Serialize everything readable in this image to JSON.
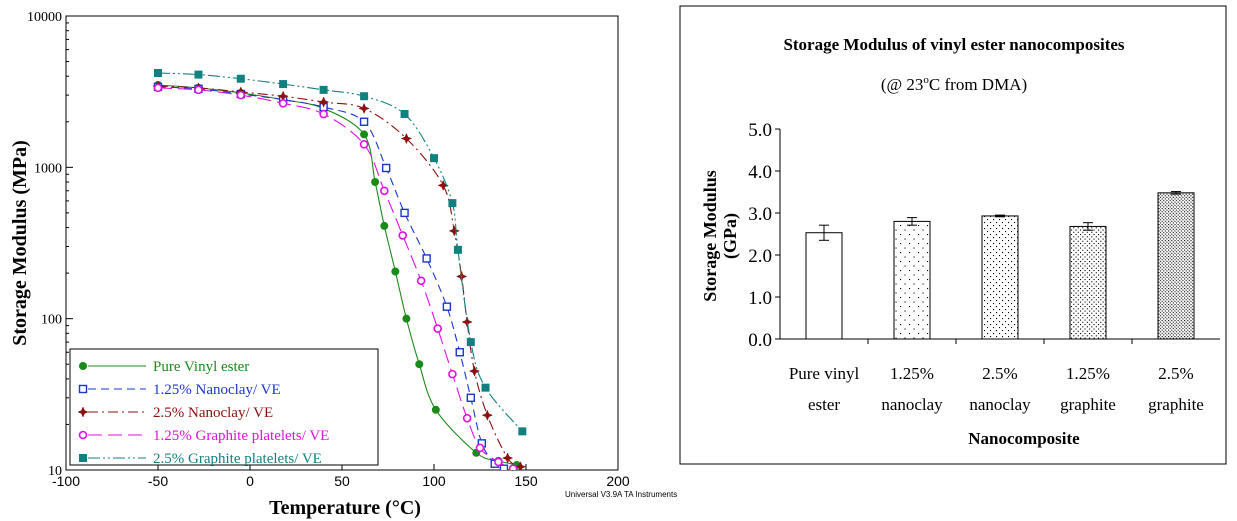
{
  "chart_data": [
    {
      "type": "line",
      "xlabel": "Temperature (°C)",
      "ylabel": "Storage Modulus (MPa)",
      "xlim": [
        -100,
        200
      ],
      "ylim": [
        10,
        10000
      ],
      "yscale": "log",
      "x_ticks": [
        "-100",
        "-50",
        "0",
        "50",
        "100",
        "150",
        "200"
      ],
      "y_ticks": [
        "10",
        "100",
        "1000",
        "10000"
      ],
      "watermark": "Universal V3.9A TA Instruments",
      "legend": "bottom-left",
      "series": [
        {
          "name": "Pure Vinyl ester",
          "color": "#1a8a1a",
          "marker": "filled-circle",
          "dash": "solid",
          "points": [
            [
              -50,
              3500
            ],
            [
              -28,
              3350
            ],
            [
              -5,
              3100
            ],
            [
              18,
              2800
            ],
            [
              40,
              2450
            ],
            [
              62,
              1650
            ],
            [
              68,
              800
            ],
            [
              73,
              410
            ],
            [
              79,
              205
            ],
            [
              85,
              100
            ],
            [
              92,
              50
            ],
            [
              101,
              25
            ],
            [
              123,
              13
            ],
            [
              135,
              11.5
            ],
            [
              145,
              10.8
            ]
          ]
        },
        {
          "name": "1.25% Nanoclay/ VE",
          "color": "#1a35d0",
          "marker": "open-square",
          "dash": "dashed",
          "points": [
            [
              -50,
              3400
            ],
            [
              -28,
              3300
            ],
            [
              -5,
              3050
            ],
            [
              18,
              2800
            ],
            [
              40,
              2500
            ],
            [
              62,
              2000
            ],
            [
              74,
              990
            ],
            [
              84,
              500
            ],
            [
              96,
              250
            ],
            [
              107,
              120
            ],
            [
              114,
              60
            ],
            [
              120,
              30
            ],
            [
              126,
              15
            ],
            [
              133,
              11
            ],
            [
              138,
              10.2
            ]
          ]
        },
        {
          "name": "2.5% Nanoclay/ VE",
          "color": "#8b1010",
          "marker": "star",
          "dash": "dashdot",
          "points": [
            [
              -50,
              3450
            ],
            [
              -28,
              3350
            ],
            [
              -5,
              3150
            ],
            [
              18,
              2950
            ],
            [
              40,
              2700
            ],
            [
              62,
              2450
            ],
            [
              85,
              1550
            ],
            [
              105,
              760
            ],
            [
              111,
              380
            ],
            [
              115,
              190
            ],
            [
              118,
              95
            ],
            [
              122,
              45
            ],
            [
              129,
              23
            ],
            [
              140,
              12
            ],
            [
              147,
              10.5
            ]
          ]
        },
        {
          "name": "1.25% Graphite platelets/ VE",
          "color": "#e010e0",
          "marker": "open-circle",
          "dash": "longdash",
          "points": [
            [
              -50,
              3350
            ],
            [
              -28,
              3250
            ],
            [
              -5,
              3000
            ],
            [
              18,
              2650
            ],
            [
              40,
              2250
            ],
            [
              62,
              1420
            ],
            [
              73,
              700
            ],
            [
              83,
              355
            ],
            [
              93,
              178
            ],
            [
              102,
              86
            ],
            [
              110,
              43
            ],
            [
              118,
              22
            ],
            [
              125,
              14
            ],
            [
              135,
              11.3
            ],
            [
              143,
              10.2
            ]
          ]
        },
        {
          "name": "2.5% Graphite platelets/ VE",
          "color": "#138080",
          "marker": "filled-square",
          "dash": "dashdotdot",
          "points": [
            [
              -50,
              4200
            ],
            [
              -28,
              4100
            ],
            [
              -5,
              3850
            ],
            [
              18,
              3550
            ],
            [
              40,
              3250
            ],
            [
              62,
              2950
            ],
            [
              84,
              2250
            ],
            [
              100,
              1150
            ],
            [
              110,
              580
            ],
            [
              113,
              285
            ],
            [
              120,
              70
            ],
            [
              128,
              35
            ],
            [
              148,
              18
            ]
          ]
        }
      ]
    },
    {
      "type": "bar",
      "title": "Storage Modulus of vinyl ester nanocomposites",
      "subtitle": "(@ 23",
      "subtitle_sup": "o",
      "subtitle_end": "C from DMA)",
      "xlabel": "Nanocomposite",
      "ylabel_line1": "Storage Modulus",
      "ylabel_line2": "(GPa)",
      "ylim": [
        0,
        5
      ],
      "y_ticks": [
        "0.0",
        "1.0",
        "2.0",
        "3.0",
        "4.0",
        "5.0"
      ],
      "categories": [
        [
          "Pure vinyl",
          "ester"
        ],
        [
          "1.25%",
          "nanoclay"
        ],
        [
          "2.5%",
          "nanoclay"
        ],
        [
          "1.25%",
          "graphite"
        ],
        [
          "2.5%",
          "graphite"
        ]
      ],
      "values": [
        2.53,
        2.8,
        2.93,
        2.68,
        3.48
      ],
      "errors": [
        0.18,
        0.09,
        0.02,
        0.09,
        0.03
      ],
      "patterns": [
        "none",
        "dots-sparse",
        "dots-medium",
        "dots-dense",
        "dots-densest"
      ]
    }
  ]
}
